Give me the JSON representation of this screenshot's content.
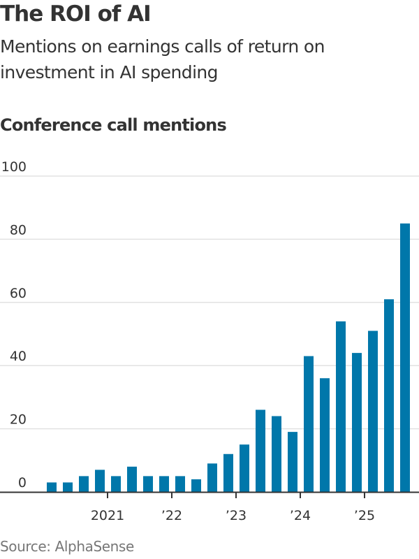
{
  "header": {
    "title": "The ROI of AI",
    "subtitle": "Mentions on earnings calls of return on investment in AI spending"
  },
  "footer": {
    "source": "Source: AlphaSense"
  },
  "colors": {
    "bar": "#0077aa",
    "grid": "#e2e2e2",
    "axis": "#333333"
  },
  "chart_data": {
    "type": "bar",
    "title": "Conference call mentions",
    "xlabel": "",
    "ylabel": "",
    "ylim": [
      0,
      100
    ],
    "yticks": [
      0,
      20,
      40,
      60,
      80,
      100
    ],
    "ytick_labels": [
      "0",
      "20",
      "40",
      "60",
      "80",
      "100"
    ],
    "grid": true,
    "frequency": "quarterly",
    "categories": [
      "2020 Q1",
      "2020 Q2",
      "2020 Q3",
      "2020 Q4",
      "2021 Q1",
      "2021 Q2",
      "2021 Q3",
      "2021 Q4",
      "2022 Q1",
      "2022 Q2",
      "2022 Q3",
      "2022 Q4",
      "2023 Q1",
      "2023 Q2",
      "2023 Q3",
      "2023 Q4",
      "2024 Q1",
      "2024 Q2",
      "2024 Q3",
      "2024 Q4",
      "2025 Q1",
      "2025 Q2",
      "2025 Q3"
    ],
    "values": [
      3,
      3,
      5,
      7,
      5,
      8,
      5,
      5,
      5,
      4,
      9,
      12,
      15,
      26,
      24,
      19,
      43,
      36,
      54,
      44,
      51,
      61,
      85
    ],
    "xticks": [
      {
        "label": "2021",
        "index": 4
      },
      {
        "label": "’22",
        "index": 8
      },
      {
        "label": "’23",
        "index": 12
      },
      {
        "label": "’24",
        "index": 16
      },
      {
        "label": "’25",
        "index": 20
      }
    ]
  }
}
